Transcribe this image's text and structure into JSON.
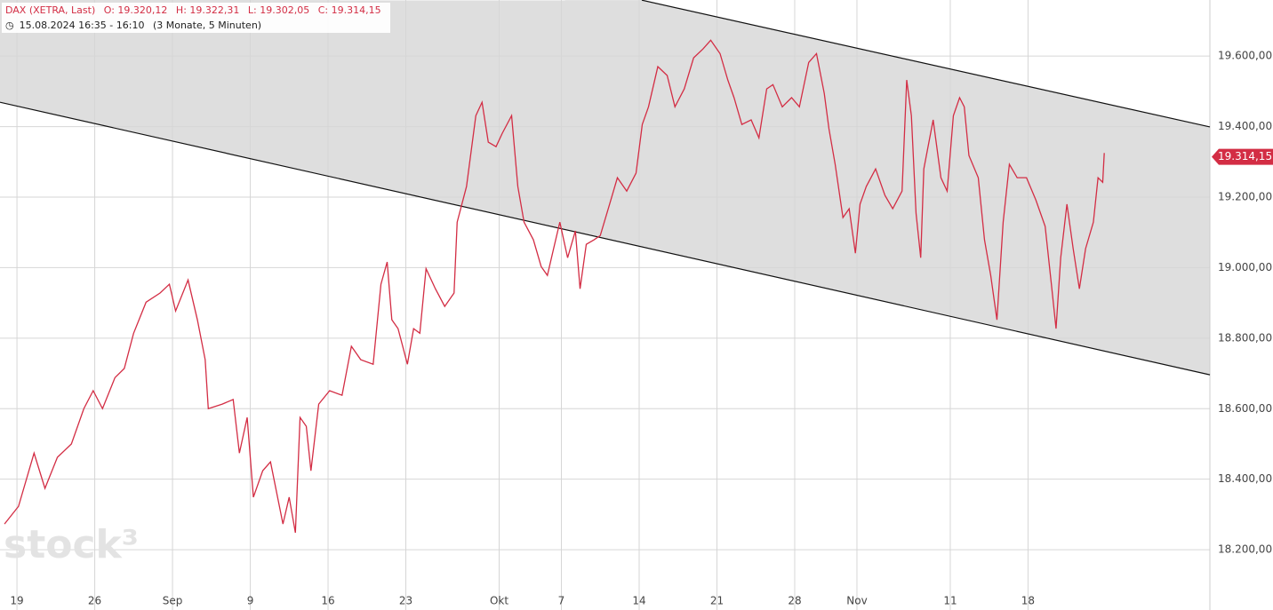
{
  "chart_data": {
    "type": "line",
    "header": {
      "instrument": "DAX (XETRA, Last)",
      "open": "O: 19.320,12",
      "high": "H: 19.322,31",
      "low": "L: 19.302,05",
      "close": "C: 19.314,15",
      "period": "15.08.2024 16:35 - 16:10",
      "range": "(3 Monate, 5 Minuten)"
    },
    "watermark": "stock³",
    "x": [
      -0.8,
      0.1,
      1.1,
      1.8,
      2.6,
      3.5,
      4.3,
      4.9,
      5.5,
      6.3,
      6.9,
      7.5,
      8.3,
      9.2,
      9.8,
      10.2,
      11.0,
      11.6,
      12.1,
      12.3,
      13.2,
      13.9,
      14.3,
      14.8,
      15.2,
      15.8,
      16.3,
      17.1,
      17.5,
      17.9,
      18.2,
      18.6,
      18.9,
      19.4,
      20.1,
      20.9,
      21.5,
      22.1,
      22.9,
      23.4,
      23.8,
      24.1,
      24.5,
      25.1,
      25.5,
      25.9,
      26.3,
      26.9,
      27.5,
      28.1,
      28.3,
      28.9,
      29.5,
      29.9,
      30.3,
      30.8,
      31.2,
      31.8,
      32.2,
      32.6,
      33.2,
      33.7,
      34.1,
      34.5,
      34.9,
      35.4,
      35.9,
      36.2,
      36.6,
      37.1,
      37.5,
      38.1,
      38.6,
      39.2,
      39.8,
      40.2,
      40.6,
      41.2,
      41.8,
      42.3,
      42.9,
      43.5,
      44.1,
      44.6,
      45.2,
      45.7,
      46.1,
      46.6,
      47.2,
      47.7,
      48.2,
      48.6,
      49.2,
      49.8,
      50.3,
      50.9,
      51.4,
      51.9,
      52.2,
      52.6,
      53.1,
      53.5,
      53.9,
      54.2,
      54.6,
      55.2,
      55.8,
      56.3,
      56.9,
      57.2,
      57.5,
      57.8,
      58.1,
      58.3,
      58.9,
      59.4,
      59.8,
      60.2,
      60.6,
      60.9,
      61.2,
      61.8,
      62.2,
      62.6,
      63.0,
      63.4,
      63.8,
      64.3,
      64.9,
      65.5,
      66.1,
      66.5,
      66.8,
      67.1,
      67.5,
      67.9,
      68.3,
      68.7,
      69.2,
      69.5,
      69.8,
      69.9
    ],
    "series": [
      {
        "name": "DAX",
        "color": "#d32d44",
        "values": [
          18273,
          18323,
          18474,
          18374,
          18462,
          18500,
          18600,
          18651,
          18600,
          18688,
          18714,
          18814,
          18902,
          18928,
          18953,
          18877,
          18965,
          18852,
          18739,
          18600,
          18613,
          18626,
          18474,
          18575,
          18349,
          18424,
          18449,
          18273,
          18349,
          18248,
          18575,
          18550,
          18424,
          18613,
          18651,
          18638,
          18777,
          18739,
          18726,
          18953,
          19016,
          18852,
          18827,
          18726,
          18827,
          18814,
          18997,
          18940,
          18890,
          18928,
          19129,
          19230,
          19431,
          19469,
          19356,
          19343,
          19381,
          19431,
          19230,
          19129,
          19079,
          19003,
          18978,
          19054,
          19129,
          19028,
          19104,
          18940,
          19066,
          19079,
          19091,
          19180,
          19255,
          19217,
          19268,
          19406,
          19456,
          19570,
          19545,
          19456,
          19507,
          19595,
          19620,
          19645,
          19607,
          19532,
          19482,
          19406,
          19419,
          19368,
          19507,
          19519,
          19456,
          19482,
          19456,
          19582,
          19607,
          19494,
          19394,
          19293,
          19142,
          19167,
          19041,
          19180,
          19230,
          19280,
          19205,
          19167,
          19217,
          19532,
          19431,
          19154,
          19028,
          19280,
          19419,
          19255,
          19217,
          19431,
          19482,
          19456,
          19318,
          19255,
          19079,
          18978,
          18852,
          19129,
          19293,
          19255,
          19255,
          19192,
          19117,
          18953,
          18827,
          19028,
          19180,
          19054,
          18940,
          19054,
          19129,
          19255,
          19242,
          19325
        ]
      }
    ],
    "trend_lines": [
      {
        "x": [
          40.17,
          76.69
        ],
        "values": [
          19758.6,
          19399
        ]
      },
      {
        "x": [
          -1.09,
          76.69
        ],
        "values": [
          19469,
          18696
        ]
      }
    ],
    "channel_color": "#dedede",
    "last_price": {
      "value": 19314.15,
      "label": "19.314,15"
    },
    "xlim": [
      -1.09,
      76.69
    ],
    "ylim": [
      18097,
      19759
    ],
    "xticks": [
      {
        "value": 0,
        "label": "19"
      },
      {
        "value": 5,
        "label": "26"
      },
      {
        "value": 10,
        "label": "Sep"
      },
      {
        "value": 15,
        "label": "9"
      },
      {
        "value": 20,
        "label": "16"
      },
      {
        "value": 25,
        "label": "23"
      },
      {
        "value": 31,
        "label": "Okt"
      },
      {
        "value": 35,
        "label": "7"
      },
      {
        "value": 40,
        "label": "14"
      },
      {
        "value": 45,
        "label": "21"
      },
      {
        "value": 50,
        "label": "28"
      },
      {
        "value": 54,
        "label": "Nov"
      },
      {
        "value": 60,
        "label": "11"
      },
      {
        "value": 65,
        "label": "18"
      }
    ],
    "yticks": [
      {
        "value": 18200,
        "label": "18.200,00"
      },
      {
        "value": 18400,
        "label": "18.400,00"
      },
      {
        "value": 18600,
        "label": "18.600,00"
      },
      {
        "value": 18800,
        "label": "18.800,00"
      },
      {
        "value": 19000,
        "label": "19.000,00"
      },
      {
        "value": 19200,
        "label": "19.200,00"
      },
      {
        "value": 19400,
        "label": "19.400,00"
      },
      {
        "value": 19600,
        "label": "19.600,00"
      }
    ],
    "grid": true
  }
}
